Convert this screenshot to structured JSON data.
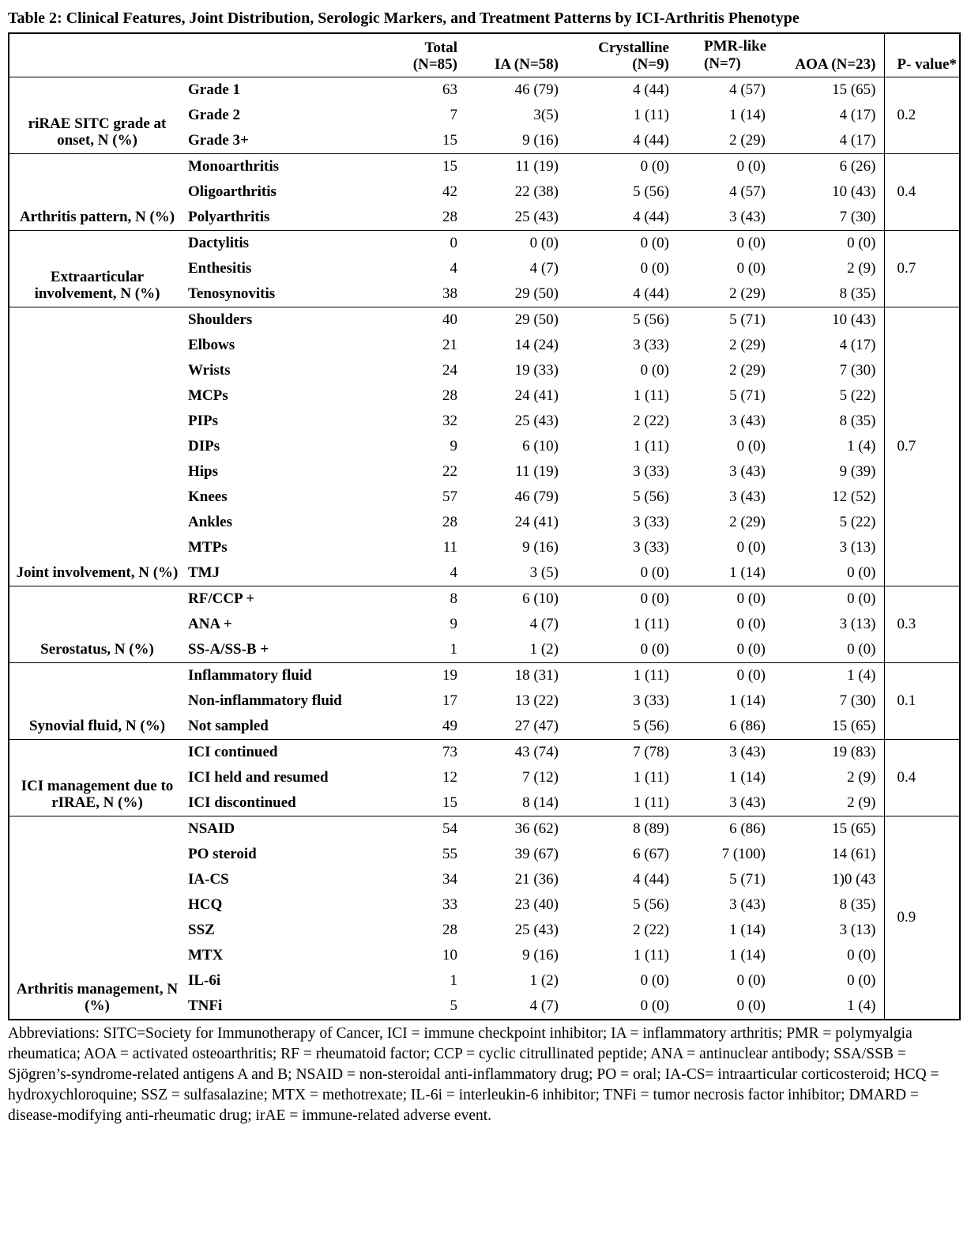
{
  "title": "Table 2: Clinical Features, Joint Distribution, Serologic Markers, and Treatment Patterns by ICI-Arthritis Phenotype",
  "table": {
    "headers": {
      "total": "Total (N=85)",
      "ia": "IA (N=58)",
      "crystalline": "Crystalline (N=9)",
      "pmr_line1": "PMR-like",
      "pmr_line2": "(N=7)",
      "aoa": "AOA (N=23)",
      "p_value": "P- value*"
    },
    "groups": [
      {
        "label": "riRAE SITC grade at onset, N (%)",
        "p_value": "0.2",
        "rows": [
          {
            "label": "Grade 1",
            "values": [
              "63",
              "46 (79)",
              "4 (44)",
              "4 (57)",
              "15 (65)"
            ]
          },
          {
            "label": "Grade 2",
            "values": [
              "7",
              "3(5)",
              "1 (11)",
              "1 (14)",
              "4 (17)"
            ]
          },
          {
            "label": "Grade 3+",
            "values": [
              "15",
              "9 (16)",
              "4 (44)",
              "2 (29)",
              "4 (17)"
            ]
          }
        ]
      },
      {
        "label": "Arthritis pattern, N (%)",
        "p_value": "0.4",
        "rows": [
          {
            "label": "Monoarthritis",
            "values": [
              "15",
              "11 (19)",
              "0 (0)",
              "0 (0)",
              "6 (26)"
            ]
          },
          {
            "label": "Oligoarthritis",
            "values": [
              "42",
              "22 (38)",
              "5 (56)",
              "4 (57)",
              "10 (43)"
            ]
          },
          {
            "label": "Polyarthritis",
            "values": [
              "28",
              "25 (43)",
              "4 (44)",
              "3 (43)",
              "7 (30)"
            ]
          }
        ]
      },
      {
        "label": "Extraarticular involvement, N (%)",
        "p_value": "0.7",
        "rows": [
          {
            "label": "Dactylitis",
            "values": [
              "0",
              "0 (0)",
              "0 (0)",
              "0 (0)",
              "0 (0)"
            ]
          },
          {
            "label": "Enthesitis",
            "values": [
              "4",
              "4 (7)",
              "0 (0)",
              "0 (0)",
              "2 (9)"
            ]
          },
          {
            "label": "Tenosynovitis",
            "values": [
              "38",
              "29 (50)",
              "4 (44)",
              "2 (29)",
              "8 (35)"
            ]
          }
        ]
      },
      {
        "label": "Joint involvement, N (%)",
        "p_value": "0.7",
        "rows": [
          {
            "label": "Shoulders",
            "values": [
              "40",
              "29 (50)",
              "5 (56)",
              "5 (71)",
              "10 (43)"
            ]
          },
          {
            "label": "Elbows",
            "values": [
              "21",
              "14 (24)",
              "3 (33)",
              "2 (29)",
              "4 (17)"
            ]
          },
          {
            "label": "Wrists",
            "values": [
              "24",
              "19 (33)",
              "0 (0)",
              "2 (29)",
              "7 (30)"
            ]
          },
          {
            "label": "MCPs",
            "values": [
              "28",
              "24 (41)",
              "1 (11)",
              "5 (71)",
              "5 (22)"
            ]
          },
          {
            "label": "PIPs",
            "values": [
              "32",
              "25 (43)",
              "2 (22)",
              "3 (43)",
              "8 (35)"
            ]
          },
          {
            "label": "DIPs",
            "values": [
              "9",
              "6 (10)",
              "1 (11)",
              "0 (0)",
              "1 (4)"
            ]
          },
          {
            "label": "Hips",
            "values": [
              "22",
              "11 (19)",
              "3 (33)",
              "3 (43)",
              "9 (39)"
            ]
          },
          {
            "label": "Knees",
            "values": [
              "57",
              "46 (79)",
              "5 (56)",
              "3 (43)",
              "12 (52)"
            ]
          },
          {
            "label": "Ankles",
            "values": [
              "28",
              "24 (41)",
              "3 (33)",
              "2 (29)",
              "5 (22)"
            ]
          },
          {
            "label": "MTPs",
            "values": [
              "11",
              "9 (16)",
              "3 (33)",
              "0 (0)",
              "3 (13)"
            ]
          },
          {
            "label": "TMJ",
            "values": [
              "4",
              "3 (5)",
              "0 (0)",
              "1 (14)",
              "0 (0)"
            ]
          }
        ]
      },
      {
        "label": "Serostatus, N (%)",
        "p_value": "0.3",
        "rows": [
          {
            "label": "RF/CCP +",
            "values": [
              "8",
              "6 (10)",
              "0 (0)",
              "0 (0)",
              "0 (0)"
            ]
          },
          {
            "label": "ANA +",
            "values": [
              "9",
              "4 (7)",
              "1 (11)",
              "0 (0)",
              "3 (13)"
            ]
          },
          {
            "label": "SS-A/SS-B +",
            "values": [
              "1",
              "1 (2)",
              "0 (0)",
              "0 (0)",
              "0 (0)"
            ]
          }
        ]
      },
      {
        "label": "Synovial fluid, N (%)",
        "p_value": "0.1",
        "rows": [
          {
            "label": "Inflammatory fluid",
            "values": [
              "19",
              "18 (31)",
              "1 (11)",
              "0 (0)",
              "1 (4)"
            ]
          },
          {
            "label": "Non-inflammatory fluid",
            "values": [
              "17",
              "13 (22)",
              "3 (33)",
              "1 (14)",
              "7 (30)"
            ]
          },
          {
            "label": "Not sampled",
            "values": [
              "49",
              "27 (47)",
              "5 (56)",
              "6 (86)",
              "15 (65)"
            ]
          }
        ]
      },
      {
        "label": "ICI management due to rIRAE, N (%)",
        "p_value": "0.4",
        "rows": [
          {
            "label": "ICI continued",
            "values": [
              "73",
              "43 (74)",
              "7 (78)",
              "3 (43)",
              "19 (83)"
            ]
          },
          {
            "label": "ICI held and resumed",
            "values": [
              "12",
              "7 (12)",
              "1 (11)",
              "1 (14)",
              "2 (9)"
            ]
          },
          {
            "label": "ICI discontinued",
            "values": [
              "15",
              "8 (14)",
              "1 (11)",
              "3 (43)",
              "2 (9)"
            ]
          }
        ]
      },
      {
        "label": "Arthritis management, N (%)",
        "p_value": "0.9",
        "rows": [
          {
            "label": "NSAID",
            "values": [
              "54",
              "36 (62)",
              "8 (89)",
              "6 (86)",
              "15 (65)"
            ]
          },
          {
            "label": "PO steroid",
            "values": [
              "55",
              "39 (67)",
              "6 (67)",
              "7 (100)",
              "14 (61)"
            ]
          },
          {
            "label": "IA-CS",
            "values": [
              "34",
              "21 (36)",
              "4 (44)",
              "5 (71)",
              "1)0 (43"
            ]
          },
          {
            "label": "HCQ",
            "values": [
              "33",
              "23 (40)",
              "5 (56)",
              "3 (43)",
              "8 (35)"
            ]
          },
          {
            "label": "SSZ",
            "values": [
              "28",
              "25 (43)",
              "2 (22)",
              "1 (14)",
              "3 (13)"
            ]
          },
          {
            "label": "MTX",
            "values": [
              "10",
              "9 (16)",
              "1 (11)",
              "1 (14)",
              "0 (0)"
            ]
          },
          {
            "label": "IL-6i",
            "values": [
              "1",
              "1 (2)",
              "0 (0)",
              "0 (0)",
              "0 (0)"
            ]
          },
          {
            "label": "TNFi",
            "values": [
              "5",
              "4 (7)",
              "0 (0)",
              "0 (0)",
              "1 (4)"
            ]
          }
        ]
      }
    ]
  },
  "footnote": "Abbreviations: SITC=Society for Immunotherapy of Cancer, ICI = immune checkpoint inhibitor; IA = inflammatory arthritis; PMR = polymyalgia rheumatica; AOA = activated osteoarthritis; RF = rheumatoid factor; CCP = cyclic citrullinated peptide; ANA = antinuclear antibody; SSA/SSB = Sjögren’s-syndrome-related antigens A and B; NSAID = non-steroidal anti-inflammatory drug; PO = oral;  IA-CS= intraarticular corticosteroid; HCQ = hydroxychloroquine; SSZ = sulfasalazine; MTX = methotrexate; IL-6i = interleukin-6 inhibitor; TNFi = tumor necrosis factor inhibitor; DMARD = disease-modifying anti-rheumatic drug; irAE = immune-related adverse event."
}
